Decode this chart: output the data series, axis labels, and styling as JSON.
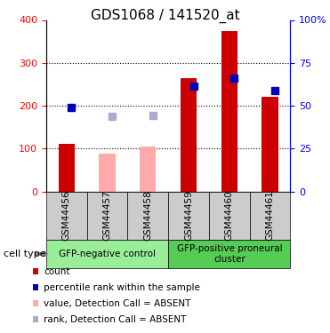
{
  "title": "GDS1068 / 141520_at",
  "categories": [
    "GSM44456",
    "GSM44457",
    "GSM44458",
    "GSM44459",
    "GSM44460",
    "GSM44461"
  ],
  "red_bars": [
    112,
    0,
    0,
    265,
    375,
    220
  ],
  "pink_bars": [
    0,
    88,
    105,
    0,
    0,
    0
  ],
  "blue_dots": [
    195,
    0,
    0,
    245,
    265,
    235
  ],
  "lightblue_dots": [
    0,
    175,
    178,
    0,
    0,
    0
  ],
  "absent_mask": [
    false,
    true,
    true,
    false,
    false,
    false
  ],
  "ylim_left": [
    0,
    400
  ],
  "yticks_left": [
    0,
    100,
    200,
    300,
    400
  ],
  "yticks_right": [
    0,
    25,
    50,
    75,
    100
  ],
  "ytick_labels_right": [
    "0",
    "25",
    "50",
    "75",
    "100%"
  ],
  "dotted_lines": [
    100,
    200,
    300
  ],
  "group1_label": "GFP-negative control",
  "group2_label": "GFP-positive proneural\ncluster",
  "cell_type_label": "cell type",
  "legend_items": [
    {
      "label": "count",
      "color": "#cc0000"
    },
    {
      "label": "percentile rank within the sample",
      "color": "#0000bb"
    },
    {
      "label": "value, Detection Call = ABSENT",
      "color": "#ffaaaa"
    },
    {
      "label": "rank, Detection Call = ABSENT",
      "color": "#aaaacc"
    }
  ],
  "bar_width": 0.4,
  "red_color": "#cc0000",
  "pink_color": "#ffaaaa",
  "blue_color": "#0000bb",
  "lightblue_color": "#aaaacc",
  "group1_bg": "#99ee99",
  "group2_bg": "#55cc55",
  "sample_bg": "#cccccc",
  "title_fontsize": 11,
  "tick_fontsize": 8,
  "legend_fontsize": 7.5
}
